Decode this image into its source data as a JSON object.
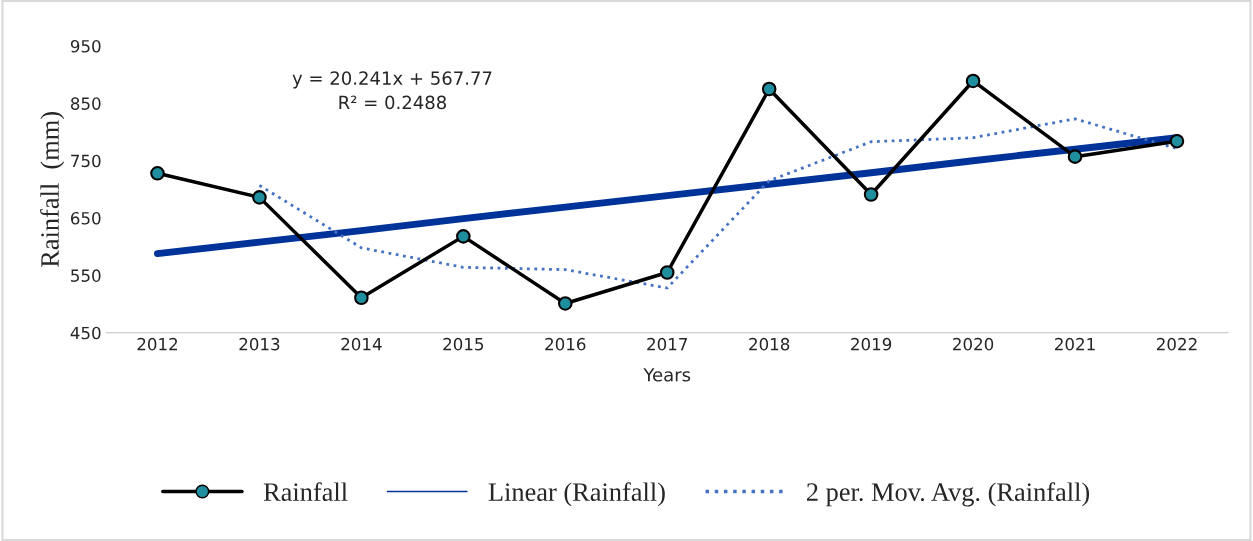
{
  "chart_data": {
    "type": "line",
    "xlabel": "Years",
    "ylabel": "Rainfall  (mm)",
    "categories": [
      "2012",
      "2013",
      "2014",
      "2015",
      "2016",
      "2017",
      "2018",
      "2019",
      "2020",
      "2021",
      "2022"
    ],
    "series": [
      {
        "name": "Rainfall",
        "color": "#000000",
        "marker": "circle",
        "line_style": "solid",
        "values": [
          728,
          686,
          511,
          618,
          501,
          555,
          875,
          691,
          889,
          757,
          784
        ]
      },
      {
        "name": "Linear (Rainfall)",
        "color": "#003399",
        "marker": "none",
        "line_style": "solid",
        "values": [
          588,
          608,
          628,
          649,
          669,
          689,
          709,
          729,
          750,
          770,
          790
        ]
      },
      {
        "name": "2 per. Mov. Avg. (Rainfall)",
        "color": "#4472c4",
        "marker": "none",
        "line_style": "dotted",
        "values": [
          null,
          707,
          598,
          564,
          560,
          528,
          715,
          783,
          790,
          823,
          771
        ]
      }
    ],
    "annotations": [
      {
        "text": "y = 20.241x + 567.77\nR² = 0.2488"
      }
    ],
    "ylim": [
      450,
      950
    ],
    "yticks": [
      450,
      550,
      650,
      750,
      850,
      950
    ],
    "grid": false,
    "legend": "bottom"
  }
}
